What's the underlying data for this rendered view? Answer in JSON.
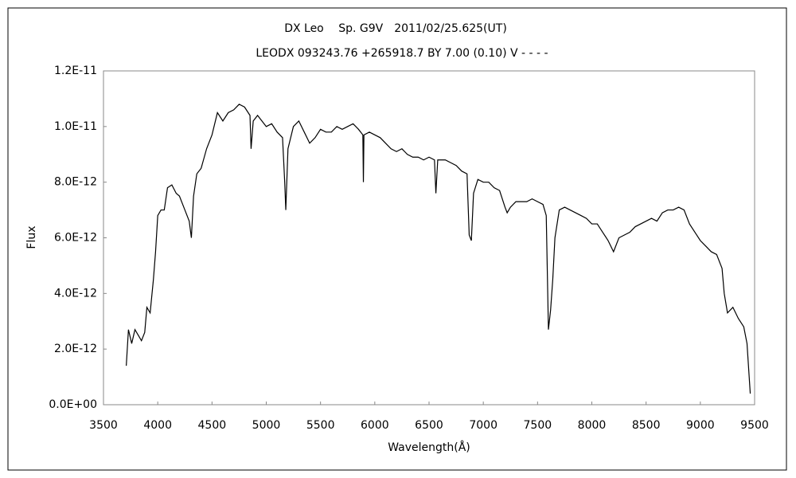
{
  "chart_data": {
    "type": "line",
    "title": "DX Leo　 Sp. G9V　2011/02/25.625(UT)",
    "subtitle": "LEODX 093243.76 +265918.7 BY 7.00 (0.10) V - - - -",
    "x_label": "Wavelength(Å)",
    "y_label": "Flux",
    "xlim": [
      3500,
      9500
    ],
    "xticks": [
      3500,
      4000,
      4500,
      5000,
      5500,
      6000,
      6500,
      7000,
      7500,
      8000,
      8500,
      9000,
      9500
    ],
    "ylim": [
      0,
      1.2e-11
    ],
    "yticks": [
      {
        "value": 0,
        "label": "0.0E+00"
      },
      {
        "value": 2e-12,
        "label": "2.0E-12"
      },
      {
        "value": 4e-12,
        "label": "4.0E-12"
      },
      {
        "value": 6e-12,
        "label": "6.0E-12"
      },
      {
        "value": 8e-12,
        "label": "8.0E-12"
      },
      {
        "value": 1e-11,
        "label": "1.0E-11"
      },
      {
        "value": 1.2e-11,
        "label": "1.2E-11"
      }
    ],
    "grid": false,
    "color": "#000000",
    "x": [
      3710,
      3730,
      3760,
      3790,
      3820,
      3850,
      3880,
      3900,
      3930,
      3960,
      3980,
      4000,
      4030,
      4060,
      4090,
      4130,
      4170,
      4200,
      4250,
      4290,
      4310,
      4330,
      4360,
      4400,
      4450,
      4500,
      4550,
      4600,
      4650,
      4700,
      4750,
      4800,
      4850,
      4860,
      4880,
      4920,
      4960,
      5000,
      5050,
      5100,
      5150,
      5170,
      5180,
      5200,
      5250,
      5300,
      5350,
      5400,
      5450,
      5500,
      5550,
      5600,
      5650,
      5700,
      5750,
      5800,
      5850,
      5890,
      5895,
      5900,
      5950,
      6000,
      6050,
      6100,
      6150,
      6200,
      6250,
      6300,
      6350,
      6400,
      6450,
      6500,
      6550,
      6563,
      6580,
      6650,
      6700,
      6750,
      6800,
      6850,
      6870,
      6890,
      6910,
      6950,
      7000,
      7050,
      7100,
      7150,
      7200,
      7220,
      7250,
      7300,
      7350,
      7400,
      7450,
      7500,
      7550,
      7580,
      7600,
      7620,
      7640,
      7660,
      7700,
      7750,
      7800,
      7850,
      7900,
      7950,
      8000,
      8050,
      8100,
      8150,
      8200,
      8250,
      8300,
      8350,
      8400,
      8450,
      8500,
      8550,
      8600,
      8650,
      8700,
      8750,
      8800,
      8850,
      8900,
      8950,
      9000,
      9050,
      9100,
      9150,
      9200,
      9220,
      9250,
      9300,
      9350,
      9400,
      9430,
      9460
    ],
    "values": [
      1.4e-12,
      2.7e-12,
      2.2e-12,
      2.7e-12,
      2.5e-12,
      2.3e-12,
      2.6e-12,
      3.5e-12,
      3.3e-12,
      4.5e-12,
      5.5e-12,
      6.8e-12,
      7e-12,
      7e-12,
      7.8e-12,
      7.9e-12,
      7.6e-12,
      7.5e-12,
      7e-12,
      6.6e-12,
      6e-12,
      7.5e-12,
      8.3e-12,
      8.5e-12,
      9.2e-12,
      9.7e-12,
      1.05e-11,
      1.02e-11,
      1.05e-11,
      1.06e-11,
      1.08e-11,
      1.07e-11,
      1.04e-11,
      9.2e-12,
      1.02e-11,
      1.04e-11,
      1.02e-11,
      1e-11,
      1.01e-11,
      9.8e-12,
      9.6e-12,
      8e-12,
      7e-12,
      9.2e-12,
      1e-11,
      1.02e-11,
      9.8e-12,
      9.4e-12,
      9.6e-12,
      9.9e-12,
      9.8e-12,
      9.8e-12,
      1e-11,
      9.9e-12,
      1e-11,
      1.01e-11,
      9.9e-12,
      9.7e-12,
      8e-12,
      9.7e-12,
      9.8e-12,
      9.7e-12,
      9.6e-12,
      9.4e-12,
      9.2e-12,
      9.1e-12,
      9.2e-12,
      9e-12,
      8.9e-12,
      8.9e-12,
      8.8e-12,
      8.9e-12,
      8.8e-12,
      7.6e-12,
      8.8e-12,
      8.8e-12,
      8.7e-12,
      8.6e-12,
      8.4e-12,
      8.3e-12,
      6.1e-12,
      5.9e-12,
      7.6e-12,
      8.1e-12,
      8e-12,
      8e-12,
      7.8e-12,
      7.7e-12,
      7.1e-12,
      6.9e-12,
      7.1e-12,
      7.3e-12,
      7.3e-12,
      7.3e-12,
      7.4e-12,
      7.3e-12,
      7.2e-12,
      6.8e-12,
      2.7e-12,
      3.4e-12,
      4.5e-12,
      6e-12,
      7e-12,
      7.1e-12,
      7e-12,
      6.9e-12,
      6.8e-12,
      6.7e-12,
      6.5e-12,
      6.5e-12,
      6.2e-12,
      5.9e-12,
      5.5e-12,
      6e-12,
      6.1e-12,
      6.2e-12,
      6.4e-12,
      6.5e-12,
      6.6e-12,
      6.7e-12,
      6.6e-12,
      6.9e-12,
      7e-12,
      7e-12,
      7.1e-12,
      7e-12,
      6.5e-12,
      6.2e-12,
      5.9e-12,
      5.7e-12,
      5.5e-12,
      5.4e-12,
      4.9e-12,
      4e-12,
      3.3e-12,
      3.5e-12,
      3.1e-12,
      2.8e-12,
      2.2e-12,
      4e-13
    ]
  }
}
